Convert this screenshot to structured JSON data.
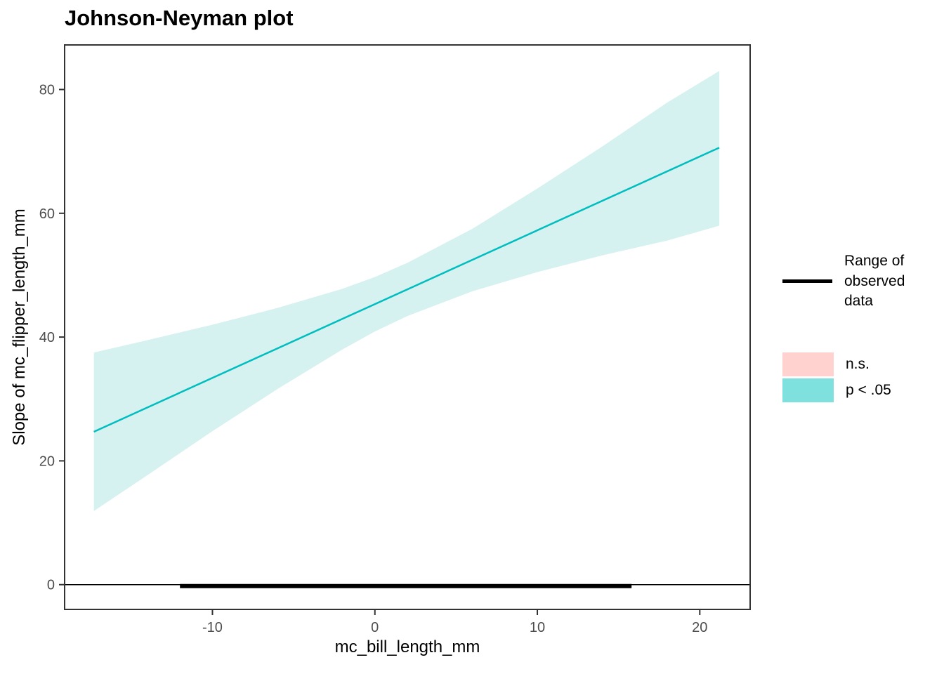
{
  "title": "Johnson-Neyman plot",
  "axes": {
    "x_label": "mc_bill_length_mm",
    "y_label": "Slope of mc_flipper_length_mm"
  },
  "legend": {
    "range_label": "Range of\nobserved\ndata",
    "items": [
      {
        "label": "n.s.",
        "color": "#FFD2CF"
      },
      {
        "label": "p < .05",
        "color": "#7FE1DD"
      }
    ]
  },
  "colors": {
    "line": "#00BDBF",
    "band_fill": "#D5F1F0",
    "observed_bar": "#000000",
    "zero_line": "#000000",
    "panel_border": "#333333",
    "tick_label": "#4D4D4D",
    "tick_mark": "#333333"
  },
  "chart_data": {
    "type": "area",
    "title": "Johnson-Neyman plot",
    "xlabel": "mc_bill_length_mm",
    "ylabel": "Slope of mc_flipper_length_mm",
    "xlim": [
      -19.1,
      23.1
    ],
    "ylim": [
      -4,
      87.2
    ],
    "x_ticks": [
      -10,
      0,
      10,
      20
    ],
    "y_ticks": [
      0,
      20,
      40,
      60,
      80
    ],
    "grid": false,
    "legend_position": "right",
    "line": {
      "name": "Slope of mc_flipper_length_mm",
      "x": [
        -17.3,
        21.2
      ],
      "y": [
        24.7,
        70.6
      ]
    },
    "band": {
      "name": "p < .05 confidence band",
      "significance": "p < .05",
      "x": [
        -17.3,
        -14.0,
        -10.0,
        -6.0,
        -2.0,
        0.0,
        2.0,
        6.0,
        10.0,
        14.0,
        18.0,
        21.2
      ],
      "upper": [
        37.5,
        39.5,
        42.0,
        44.7,
        47.8,
        49.7,
        52.0,
        57.5,
        64.0,
        70.8,
        77.9,
        83.0
      ],
      "lower": [
        11.9,
        17.7,
        24.8,
        31.6,
        38.0,
        40.9,
        43.4,
        47.4,
        50.5,
        53.2,
        55.6,
        58.0
      ]
    },
    "observed_range": {
      "name": "Range of observed data",
      "x": [
        -12.0,
        15.8
      ],
      "y": 0
    },
    "hline": {
      "y": 0
    }
  }
}
